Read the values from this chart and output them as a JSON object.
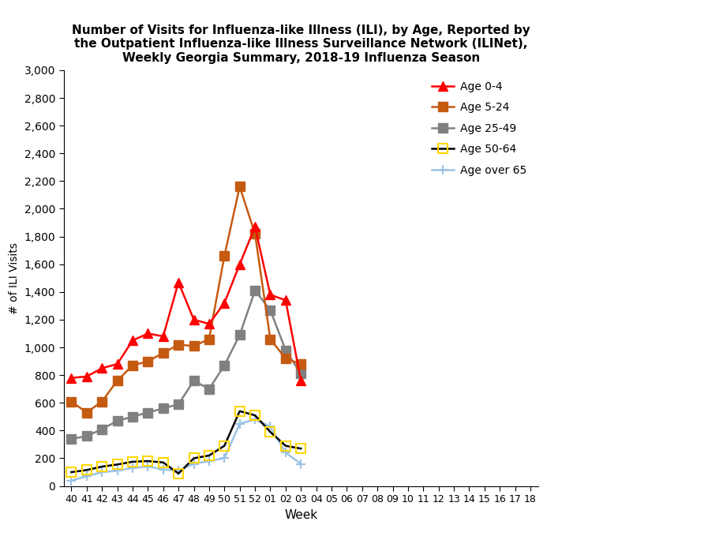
{
  "title": "Number of Visits for Influenza-like Illness (ILI), by Age, Reported by\nthe Outpatient Influenza-like Illness Surveillance Network (ILINet),\nWeekly Georgia Summary, 2018-19 Influenza Season",
  "xlabel": "Week",
  "ylabel": "# of ILI Visits",
  "weeks": [
    "40",
    "41",
    "42",
    "43",
    "44",
    "45",
    "46",
    "47",
    "48",
    "49",
    "50",
    "51",
    "52",
    "01",
    "02",
    "03",
    "04",
    "05",
    "06",
    "07",
    "08",
    "09",
    "10",
    "11",
    "12",
    "13",
    "14",
    "15",
    "16",
    "17",
    "18"
  ],
  "age_0_4": [
    780,
    790,
    850,
    880,
    1050,
    1100,
    1080,
    1470,
    1200,
    1170,
    1320,
    1600,
    1870,
    1380,
    1340,
    760,
    null,
    null,
    null,
    null,
    null,
    null,
    null,
    null,
    null,
    null,
    null,
    null,
    null,
    null,
    null
  ],
  "age_5_24": [
    610,
    530,
    610,
    760,
    870,
    900,
    960,
    1020,
    1010,
    1060,
    1660,
    2160,
    1820,
    1060,
    920,
    880,
    null,
    null,
    null,
    null,
    null,
    null,
    null,
    null,
    null,
    null,
    null,
    null,
    null,
    null,
    null
  ],
  "age_25_49": [
    340,
    360,
    410,
    470,
    500,
    530,
    560,
    590,
    760,
    700,
    870,
    1090,
    1410,
    1270,
    980,
    810,
    null,
    null,
    null,
    null,
    null,
    null,
    null,
    null,
    null,
    null,
    null,
    null,
    null,
    null,
    null
  ],
  "age_50_64": [
    100,
    115,
    140,
    155,
    175,
    180,
    170,
    90,
    200,
    220,
    290,
    540,
    510,
    390,
    290,
    270,
    null,
    null,
    null,
    null,
    null,
    null,
    null,
    null,
    null,
    null,
    null,
    null,
    null,
    null,
    null
  ],
  "age_over_65": [
    40,
    70,
    100,
    110,
    130,
    140,
    120,
    110,
    160,
    180,
    200,
    450,
    480,
    430,
    240,
    160,
    null,
    null,
    null,
    null,
    null,
    null,
    null,
    null,
    null,
    null,
    null,
    null,
    null,
    null,
    null
  ],
  "color_0_4": "#FF0000",
  "color_5_24": "#C55A11",
  "color_25_49": "#808080",
  "color_50_64_line": "#000000",
  "color_50_64_marker": "#FFD700",
  "color_over_65": "#9DC3E6",
  "ylim": [
    0,
    3000
  ],
  "yticks": [
    0,
    200,
    400,
    600,
    800,
    1000,
    1200,
    1400,
    1600,
    1800,
    2000,
    2200,
    2400,
    2600,
    2800,
    3000
  ],
  "background_color": "#FFFFFF",
  "legend_labels": [
    "Age 0-4",
    "Age 5-24",
    "Age 25-49",
    "Age 50-64",
    "Age over 65"
  ]
}
